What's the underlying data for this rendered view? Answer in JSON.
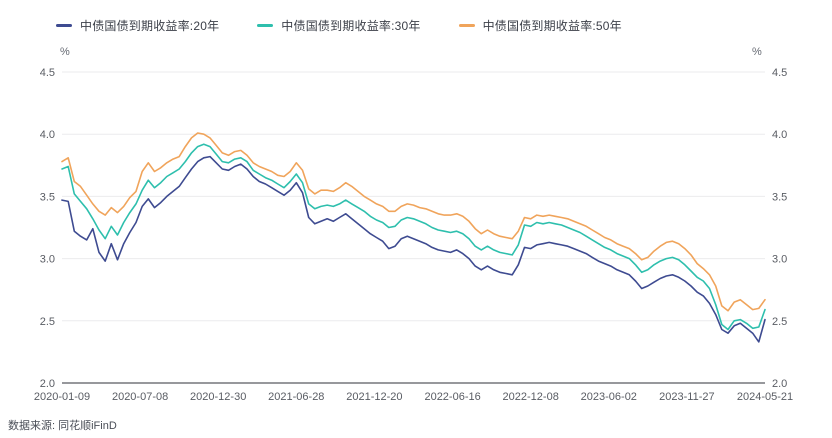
{
  "source": {
    "label": "数据来源: 同花顺iFinD"
  },
  "units": {
    "left": "%",
    "right": "%"
  },
  "chart_data": {
    "type": "line",
    "title": "",
    "legend_position": "top-left",
    "grid": true,
    "x_axis": {
      "tick_labels": [
        "2020-01-09",
        "2020-07-08",
        "2020-12-30",
        "2021-06-28",
        "2021-12-20",
        "2022-06-16",
        "2022-12-08",
        "2023-06-02",
        "2023-11-27",
        "2024-05-21"
      ],
      "range": [
        "2020-01-09",
        "2024-05-21"
      ]
    },
    "y_axis": {
      "min": 2.0,
      "max": 4.5,
      "tick_step": 0.5,
      "tick_labels": [
        "4.5",
        "4.0",
        "3.5",
        "3.0",
        "2.5",
        "2.0"
      ],
      "unit": "%"
    },
    "sampling": "values evenly spaced in time (~biweekly) from 2020-01-09 to 2024-05-21, read from plot",
    "series": [
      {
        "id": "20y",
        "name": "中债国债到期收益率:20年",
        "color": "#3E4B91",
        "values": [
          3.47,
          3.46,
          3.22,
          3.18,
          3.15,
          3.24,
          3.05,
          2.98,
          3.12,
          2.99,
          3.12,
          3.21,
          3.29,
          3.42,
          3.48,
          3.41,
          3.45,
          3.5,
          3.54,
          3.58,
          3.65,
          3.72,
          3.78,
          3.81,
          3.82,
          3.77,
          3.72,
          3.71,
          3.74,
          3.76,
          3.72,
          3.66,
          3.62,
          3.6,
          3.57,
          3.54,
          3.51,
          3.55,
          3.61,
          3.53,
          3.33,
          3.28,
          3.3,
          3.32,
          3.3,
          3.33,
          3.36,
          3.32,
          3.28,
          3.24,
          3.2,
          3.17,
          3.14,
          3.08,
          3.1,
          3.16,
          3.18,
          3.16,
          3.14,
          3.12,
          3.09,
          3.07,
          3.06,
          3.05,
          3.07,
          3.04,
          3.0,
          2.94,
          2.91,
          2.94,
          2.91,
          2.89,
          2.88,
          2.87,
          2.95,
          3.09,
          3.08,
          3.11,
          3.12,
          3.13,
          3.12,
          3.11,
          3.1,
          3.08,
          3.06,
          3.04,
          3.01,
          2.98,
          2.96,
          2.94,
          2.91,
          2.89,
          2.87,
          2.82,
          2.76,
          2.78,
          2.81,
          2.84,
          2.86,
          2.87,
          2.85,
          2.82,
          2.78,
          2.73,
          2.7,
          2.64,
          2.55,
          2.43,
          2.4,
          2.46,
          2.48,
          2.44,
          2.4,
          2.33,
          2.51
        ]
      },
      {
        "id": "30y",
        "name": "中债国债到期收益率:30年",
        "color": "#2EBFAD",
        "values": [
          3.72,
          3.74,
          3.52,
          3.46,
          3.4,
          3.32,
          3.23,
          3.16,
          3.26,
          3.19,
          3.29,
          3.37,
          3.44,
          3.55,
          3.63,
          3.57,
          3.61,
          3.66,
          3.69,
          3.72,
          3.78,
          3.85,
          3.9,
          3.92,
          3.9,
          3.84,
          3.78,
          3.77,
          3.8,
          3.81,
          3.78,
          3.71,
          3.68,
          3.65,
          3.63,
          3.6,
          3.57,
          3.62,
          3.68,
          3.61,
          3.44,
          3.4,
          3.42,
          3.43,
          3.42,
          3.44,
          3.47,
          3.44,
          3.41,
          3.38,
          3.34,
          3.31,
          3.29,
          3.25,
          3.26,
          3.31,
          3.33,
          3.32,
          3.3,
          3.28,
          3.25,
          3.23,
          3.22,
          3.21,
          3.22,
          3.2,
          3.16,
          3.1,
          3.07,
          3.1,
          3.07,
          3.05,
          3.04,
          3.03,
          3.11,
          3.27,
          3.26,
          3.29,
          3.28,
          3.29,
          3.28,
          3.27,
          3.25,
          3.23,
          3.21,
          3.18,
          3.15,
          3.12,
          3.09,
          3.07,
          3.04,
          3.02,
          3.0,
          2.95,
          2.89,
          2.91,
          2.95,
          2.98,
          3.0,
          3.01,
          2.99,
          2.95,
          2.9,
          2.85,
          2.82,
          2.76,
          2.63,
          2.47,
          2.43,
          2.5,
          2.51,
          2.48,
          2.44,
          2.45,
          2.59
        ]
      },
      {
        "id": "50y",
        "name": "中债国债到期收益率:50年",
        "color": "#F0A45B",
        "values": [
          3.78,
          3.81,
          3.62,
          3.58,
          3.51,
          3.44,
          3.38,
          3.35,
          3.41,
          3.37,
          3.42,
          3.49,
          3.54,
          3.7,
          3.77,
          3.7,
          3.73,
          3.77,
          3.8,
          3.82,
          3.9,
          3.97,
          4.01,
          4.0,
          3.97,
          3.91,
          3.85,
          3.83,
          3.86,
          3.87,
          3.83,
          3.77,
          3.74,
          3.72,
          3.7,
          3.67,
          3.66,
          3.7,
          3.77,
          3.71,
          3.56,
          3.52,
          3.55,
          3.55,
          3.54,
          3.57,
          3.61,
          3.58,
          3.54,
          3.5,
          3.47,
          3.44,
          3.42,
          3.38,
          3.38,
          3.42,
          3.44,
          3.43,
          3.41,
          3.4,
          3.38,
          3.36,
          3.35,
          3.35,
          3.36,
          3.34,
          3.3,
          3.24,
          3.2,
          3.23,
          3.2,
          3.18,
          3.17,
          3.16,
          3.22,
          3.33,
          3.32,
          3.35,
          3.34,
          3.35,
          3.34,
          3.33,
          3.32,
          3.3,
          3.28,
          3.26,
          3.23,
          3.2,
          3.17,
          3.15,
          3.12,
          3.1,
          3.08,
          3.04,
          2.99,
          3.01,
          3.06,
          3.1,
          3.13,
          3.14,
          3.12,
          3.08,
          3.03,
          2.96,
          2.92,
          2.87,
          2.78,
          2.62,
          2.58,
          2.65,
          2.67,
          2.63,
          2.59,
          2.6,
          2.67
        ]
      }
    ]
  }
}
